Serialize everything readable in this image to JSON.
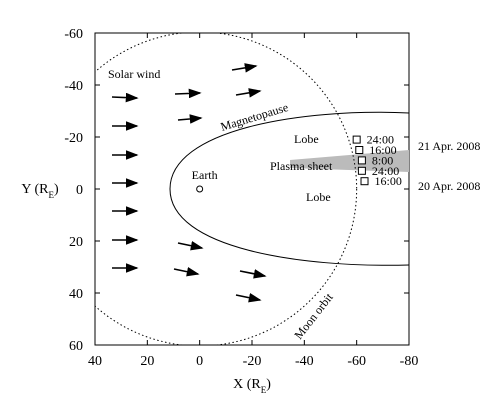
{
  "chart_data": {
    "type": "scatter",
    "xlabel": {
      "main": "X (R",
      "sub": "E",
      "end": ")"
    },
    "ylabel": {
      "main": "Y (R",
      "sub": "E",
      "end": ")"
    },
    "xlim": [
      40,
      -80
    ],
    "ylim": [
      60,
      -60
    ],
    "xticks": [
      40,
      20,
      0,
      -20,
      -40,
      -60,
      -80
    ],
    "yticks": [
      -60,
      -40,
      -20,
      0,
      20,
      40,
      60
    ],
    "x": [
      -60,
      -61,
      -62,
      -62,
      -63
    ],
    "y": [
      -19,
      -15,
      -11,
      -7,
      -3
    ],
    "point_labels": [
      "24:00",
      "16:00",
      "8:00",
      "24:00",
      "16:00"
    ],
    "dates": [
      "21 Apr. 2008",
      "20 Apr. 2008"
    ],
    "earth": {
      "x": 0,
      "y": 0,
      "label": "Earth"
    },
    "moon_orbit": {
      "radius": 60,
      "label": "Moon orbit"
    },
    "region_labels": {
      "solar_wind": "Solar wind",
      "magnetopause": "Magnetopause",
      "lobe_north": "Lobe",
      "plasma_sheet": "Plasma sheet",
      "lobe_south": "Lobe"
    },
    "color": "#000000"
  }
}
